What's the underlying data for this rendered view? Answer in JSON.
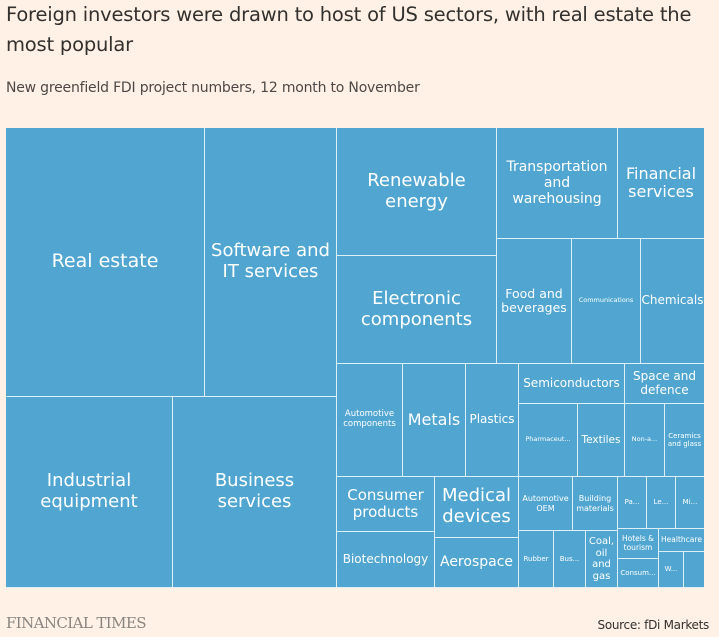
{
  "header": {
    "title": "Foreign investors were drawn to host of US sectors, with real estate the most popular",
    "subtitle": "New greenfield FDI project numbers, 12 month to November"
  },
  "footer": {
    "logo": "FINANCIAL TIMES",
    "source": "Source: fDi Markets"
  },
  "colors": {
    "background": "#FFF1E5",
    "tile": "#51A6D1",
    "tile_border": "#DCEEF7",
    "label": "#FFFFFF"
  },
  "chart_data": {
    "type": "treemap",
    "title": "Foreign investors were drawn to host of US sectors, with real estate the most popular",
    "subtitle": "New greenfield FDI project numbers, 12 month to November",
    "value_note": "Values not printed; estimated relative shares (approx. % of total area)",
    "series": [
      {
        "label": "Real estate",
        "value": 14.1
      },
      {
        "label": "Software and IT services",
        "value": 9.3
      },
      {
        "label": "Industrial equipment",
        "value": 8.3
      },
      {
        "label": "Business services",
        "value": 8.2
      },
      {
        "label": "Renewable energy",
        "value": 5.3
      },
      {
        "label": "Electronic components",
        "value": 4.5
      },
      {
        "label": "Transportation and warehousing",
        "value": 3.5
      },
      {
        "label": "Financial services",
        "value": 2.5
      },
      {
        "label": "Food and beverages",
        "value": 2.5
      },
      {
        "label": "Communications",
        "value": 2.3
      },
      {
        "label": "Chemicals",
        "value": 2.1
      },
      {
        "label": "Automotive components",
        "value": 2.0
      },
      {
        "label": "Metals",
        "value": 1.9
      },
      {
        "label": "Plastics",
        "value": 1.6
      },
      {
        "label": "Biotechnology",
        "value": 1.5
      },
      {
        "label": "Consumer products",
        "value": 1.4
      },
      {
        "label": "Medical devices",
        "value": 1.3
      },
      {
        "label": "Pharmaceut...",
        "value": 1.1
      },
      {
        "label": "Aerospace",
        "value": 1.1
      },
      {
        "label": "Semiconductors",
        "value": 1.1
      },
      {
        "label": "Textiles",
        "value": 0.9
      },
      {
        "label": "Space and defence",
        "value": 0.8
      },
      {
        "label": "Non-a...",
        "value": 0.8
      },
      {
        "label": "Ceramics and glass",
        "value": 0.8
      },
      {
        "label": "Automotive OEM",
        "value": 0.8
      },
      {
        "label": "Building materials",
        "value": 0.6
      },
      {
        "label": "Rubber",
        "value": 0.5
      },
      {
        "label": "Bus...",
        "value": 0.5
      },
      {
        "label": "Coal, oil and gas",
        "value": 0.5
      },
      {
        "label": "Pa...",
        "value": 0.4
      },
      {
        "label": "Le...",
        "value": 0.4
      },
      {
        "label": "Mi...",
        "value": 0.4
      },
      {
        "label": "Hotels & tourism",
        "value": 0.3
      },
      {
        "label": "Consum...",
        "value": 0.3
      },
      {
        "label": "Healthcare",
        "value": 0.3
      },
      {
        "label": "W...",
        "value": 0.2
      },
      {
        "label": "",
        "value": 0.2
      }
    ]
  }
}
